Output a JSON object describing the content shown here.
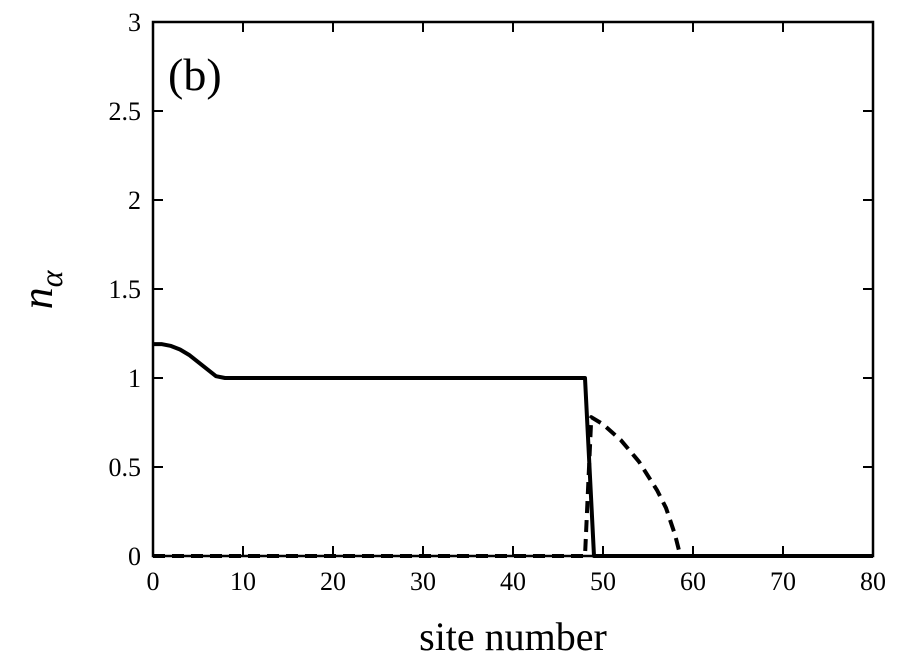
{
  "chart_data": {
    "type": "line",
    "panel_label": "(b)",
    "xlabel": "site number",
    "ylabel": "n",
    "ylabel_subscript": "α",
    "xlim": [
      0,
      80
    ],
    "ylim": [
      0,
      3
    ],
    "xticks": [
      0,
      10,
      20,
      30,
      40,
      50,
      60,
      70,
      80
    ],
    "yticks": [
      0,
      0.5,
      1,
      1.5,
      2,
      2.5,
      3
    ],
    "ytick_labels": [
      "0",
      "0.5",
      "1",
      "1.5",
      "2",
      "2.5",
      "3"
    ],
    "grid": false,
    "legend": "none",
    "series": [
      {
        "style": "solid",
        "color": "#000000",
        "points": [
          [
            0,
            1.19
          ],
          [
            1,
            1.19
          ],
          [
            2,
            1.18
          ],
          [
            3,
            1.16
          ],
          [
            4,
            1.13
          ],
          [
            5,
            1.09
          ],
          [
            6,
            1.05
          ],
          [
            7,
            1.01
          ],
          [
            8,
            1.0
          ],
          [
            20,
            1.0
          ],
          [
            30,
            1.0
          ],
          [
            40,
            1.0
          ],
          [
            48,
            1.0
          ],
          [
            49,
            0.0
          ],
          [
            60,
            0.0
          ],
          [
            70,
            0.0
          ],
          [
            80,
            0.0
          ]
        ]
      },
      {
        "style": "dashed",
        "color": "#000000",
        "points": [
          [
            0,
            0.0
          ],
          [
            10,
            0.0
          ],
          [
            20,
            0.0
          ],
          [
            30,
            0.0
          ],
          [
            40,
            0.0
          ],
          [
            48,
            0.0
          ],
          [
            48.7,
            0.78
          ],
          [
            50,
            0.74
          ],
          [
            52,
            0.65
          ],
          [
            54,
            0.53
          ],
          [
            56,
            0.37
          ],
          [
            57,
            0.27
          ],
          [
            58,
            0.12
          ],
          [
            58.6,
            0.0
          ],
          [
            60,
            0.0
          ],
          [
            70,
            0.0
          ],
          [
            80,
            0.0
          ]
        ]
      }
    ]
  }
}
